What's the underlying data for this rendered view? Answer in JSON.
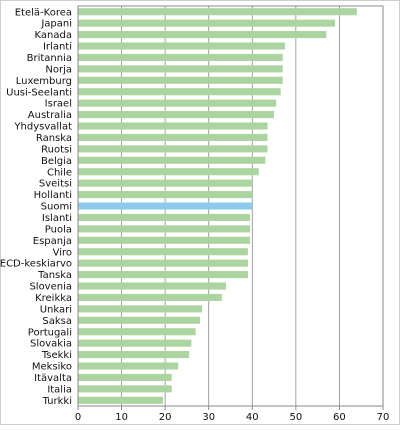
{
  "chart_data": {
    "type": "bar",
    "orientation": "horizontal",
    "categories": [
      "Etelä-Korea",
      "Japani",
      "Kanada",
      "Irlanti",
      "Britannia",
      "Norja",
      "Luxemburg",
      "Uusi-Seelanti",
      "Israel",
      "Australia",
      "Yhdysvallat",
      "Ranska",
      "Ruotsi",
      "Belgia",
      "Chile",
      "Sveitsi",
      "Hollanti",
      "Suomi",
      "Islanti",
      "Puola",
      "Espanja",
      "Viro",
      "OECD-keskiarvo",
      "Tanska",
      "Slovenia",
      "Kreikka",
      "Unkari",
      "Saksa",
      "Portugali",
      "Slovakia",
      "Tsekki",
      "Meksiko",
      "Itävalta",
      "Italia",
      "Turkki"
    ],
    "values": [
      64,
      59,
      57,
      47.5,
      47,
      47,
      47,
      46.5,
      45.5,
      45,
      43.5,
      43.5,
      43.5,
      43,
      41.5,
      40,
      40,
      40,
      39.5,
      39.5,
      39.5,
      39,
      39,
      39,
      34,
      33,
      28.5,
      28,
      27,
      26,
      25.5,
      23,
      21.5,
      21.5,
      19.5
    ],
    "highlight": "Suomi",
    "colors": {
      "bar": "#acd4a0",
      "highlight": "#8ecbea",
      "grid": "#8a8a8a",
      "frame": "#8a8a8a",
      "outer_border": "#cfcfcf"
    },
    "xlim": [
      0,
      70
    ],
    "xticks": [
      0,
      10,
      20,
      30,
      40,
      50,
      60,
      70
    ],
    "grid": true,
    "title": "",
    "xlabel": "",
    "ylabel": ""
  }
}
